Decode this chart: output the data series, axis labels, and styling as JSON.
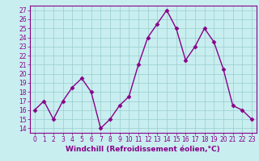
{
  "x": [
    0,
    1,
    2,
    3,
    4,
    5,
    6,
    7,
    8,
    9,
    10,
    11,
    12,
    13,
    14,
    15,
    16,
    17,
    18,
    19,
    20,
    21,
    22,
    23
  ],
  "y": [
    16,
    17,
    15,
    17,
    18.5,
    19.5,
    18,
    14,
    15,
    16.5,
    17.5,
    21,
    24,
    25.5,
    27,
    25,
    21.5,
    23,
    25,
    23.5,
    20.5,
    16.5,
    16,
    15
  ],
  "line_color": "#880088",
  "marker": "D",
  "marker_size": 2.5,
  "linewidth": 1.0,
  "xlabel": "Windchill (Refroidissement éolien,°C)",
  "xlabel_fontsize": 6.5,
  "ylim": [
    13.5,
    27.5
  ],
  "xlim": [
    -0.5,
    23.5
  ],
  "yticks": [
    14,
    15,
    16,
    17,
    18,
    19,
    20,
    21,
    22,
    23,
    24,
    25,
    26,
    27
  ],
  "xticks": [
    0,
    1,
    2,
    3,
    4,
    5,
    6,
    7,
    8,
    9,
    10,
    11,
    12,
    13,
    14,
    15,
    16,
    17,
    18,
    19,
    20,
    21,
    22,
    23
  ],
  "tick_fontsize": 5.5,
  "background_color": "#c8eef0",
  "grid_color": "#99cccc",
  "spine_color": "#880088"
}
